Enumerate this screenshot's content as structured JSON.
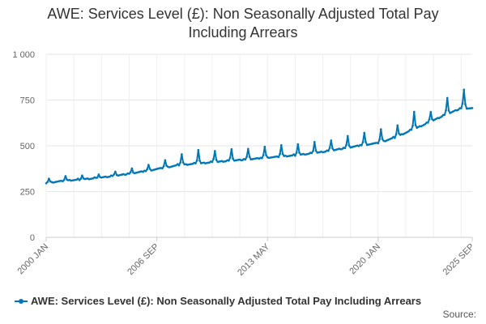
{
  "colors": {
    "series": "#0077b6",
    "grid": "#e6e6e6",
    "axis_text": "#666666",
    "title": "#333333"
  },
  "chart_data": {
    "type": "line",
    "title_lines": [
      "AWE: Services Level (£): Non Seasonally Adjusted Total Pay",
      "Including Arrears"
    ],
    "xlabel": "",
    "ylabel": "",
    "ylim": [
      0,
      1000
    ],
    "yticks": [
      {
        "value": 0,
        "label": "0"
      },
      {
        "value": 250,
        "label": "250"
      },
      {
        "value": 500,
        "label": "500"
      },
      {
        "value": 750,
        "label": "750"
      },
      {
        "value": 1000,
        "label": "1 000"
      }
    ],
    "x_range": [
      "2000-01",
      "2025-09"
    ],
    "x_labels": [
      {
        "date": "2000-01",
        "label": "2000 JAN"
      },
      {
        "date": "2006-09",
        "label": "2006 SEP"
      },
      {
        "date": "2013-05",
        "label": "2013 MAY"
      },
      {
        "date": "2020-01",
        "label": "2020 JAN"
      },
      {
        "date": "2025-09",
        "label": "2025 SEP"
      }
    ],
    "x_gridlines": [
      "2000-01",
      "2001-09",
      "2003-05",
      "2005-01",
      "2006-09",
      "2008-05",
      "2010-01",
      "2011-09",
      "2013-05",
      "2015-01",
      "2016-09",
      "2018-05",
      "2020-01",
      "2021-09",
      "2023-05",
      "2025-01"
    ],
    "series": [
      {
        "name": "AWE: Services Level (£): Non Seasonally Adjusted Total Pay Including Arrears",
        "anchors": [
          {
            "year": 2000,
            "value": 296
          },
          {
            "year": 2001,
            "value": 308
          },
          {
            "year": 2002,
            "value": 315
          },
          {
            "year": 2003,
            "value": 323
          },
          {
            "year": 2004,
            "value": 334
          },
          {
            "year": 2005,
            "value": 347
          },
          {
            "year": 2006,
            "value": 362
          },
          {
            "year": 2007,
            "value": 378
          },
          {
            "year": 2008,
            "value": 395
          },
          {
            "year": 2009,
            "value": 402
          },
          {
            "year": 2010,
            "value": 410
          },
          {
            "year": 2011,
            "value": 418
          },
          {
            "year": 2012,
            "value": 425
          },
          {
            "year": 2013,
            "value": 433
          },
          {
            "year": 2014,
            "value": 440
          },
          {
            "year": 2015,
            "value": 448
          },
          {
            "year": 2016,
            "value": 458
          },
          {
            "year": 2017,
            "value": 471
          },
          {
            "year": 2018,
            "value": 487
          },
          {
            "year": 2019,
            "value": 503
          },
          {
            "year": 2020,
            "value": 515
          },
          {
            "year": 2021,
            "value": 545
          },
          {
            "year": 2022,
            "value": 585
          },
          {
            "year": 2023,
            "value": 625
          },
          {
            "year": 2024,
            "value": 668
          },
          {
            "year": 2025,
            "value": 705
          }
        ],
        "march_bonus": [
          {
            "year": 2000,
            "value": 22
          },
          {
            "year": 2001,
            "value": 25
          },
          {
            "year": 2002,
            "value": 22
          },
          {
            "year": 2003,
            "value": 20
          },
          {
            "year": 2004,
            "value": 25
          },
          {
            "year": 2005,
            "value": 25
          },
          {
            "year": 2006,
            "value": 30
          },
          {
            "year": 2007,
            "value": 40
          },
          {
            "year": 2008,
            "value": 58
          },
          {
            "year": 2009,
            "value": 75
          },
          {
            "year": 2010,
            "value": 62
          },
          {
            "year": 2011,
            "value": 60
          },
          {
            "year": 2012,
            "value": 55
          },
          {
            "year": 2013,
            "value": 60
          },
          {
            "year": 2014,
            "value": 62
          },
          {
            "year": 2015,
            "value": 60
          },
          {
            "year": 2016,
            "value": 62
          },
          {
            "year": 2017,
            "value": 58
          },
          {
            "year": 2018,
            "value": 62
          },
          {
            "year": 2019,
            "value": 65
          },
          {
            "year": 2020,
            "value": 70
          },
          {
            "year": 2021,
            "value": 60
          },
          {
            "year": 2022,
            "value": 95
          },
          {
            "year": 2023,
            "value": 55
          },
          {
            "year": 2024,
            "value": 85
          },
          {
            "year": 2025,
            "value": 100
          }
        ]
      }
    ],
    "legend_position": "bottom-left"
  },
  "source_label": "Source:"
}
